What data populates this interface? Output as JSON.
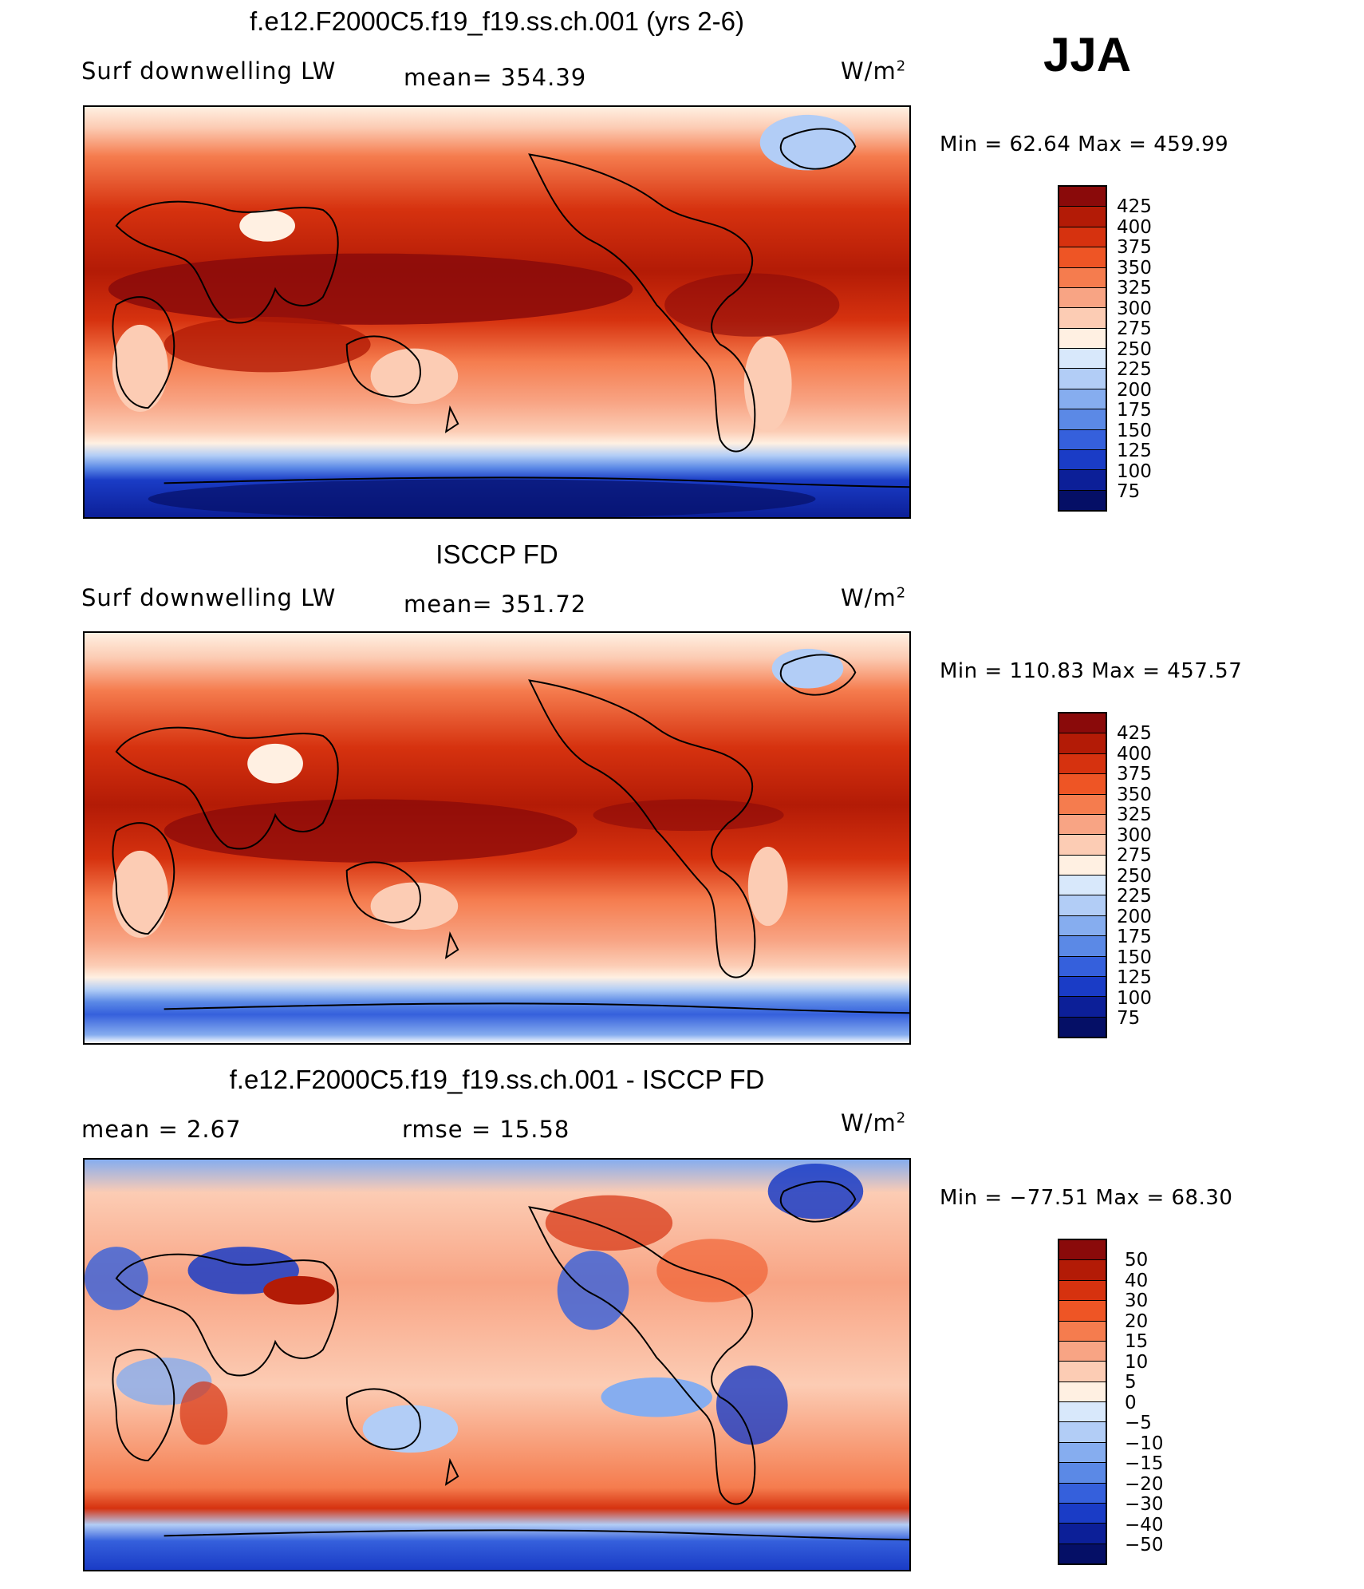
{
  "season": "JJA",
  "panels": [
    {
      "title": "f.e12.F2000C5.f19_f19.ss.ch.001 (yrs 2-6)",
      "variable": "Surf downwelling LW",
      "stat": "mean=  354.39",
      "units": "W/m",
      "units_sup": "2",
      "minmax": "Min =   62.64  Max  =  459.99",
      "scale": "abs",
      "colorbar_labels": [
        "425",
        "400",
        "375",
        "350",
        "325",
        "300",
        "275",
        "250",
        "225",
        "200",
        "175",
        "150",
        "125",
        "100",
        "75"
      ]
    },
    {
      "title": "ISCCP FD",
      "variable": "Surf downwelling LW",
      "stat": "mean=  351.72",
      "units": "W/m",
      "units_sup": "2",
      "minmax": "Min  =  110.83  Max  =  457.57",
      "scale": "abs",
      "colorbar_labels": [
        "425",
        "400",
        "375",
        "350",
        "325",
        "300",
        "275",
        "250",
        "225",
        "200",
        "175",
        "150",
        "125",
        "100",
        "75"
      ]
    },
    {
      "title": "f.e12.F2000C5.f19_f19.ss.ch.001 - ISCCP FD",
      "stat_left": "mean =     2.67",
      "stat": "rmse =    15.58",
      "units": "W/m",
      "units_sup": "2",
      "minmax": "Min  =  −77.51  Max  =    68.30",
      "scale": "diff",
      "colorbar_labels": [
        "50",
        "40",
        "30",
        "20",
        "15",
        "10",
        "5",
        "0",
        "−5",
        "−10",
        "−15",
        "−20",
        "−30",
        "−40",
        "−50"
      ]
    }
  ],
  "colorbar_colors": [
    "#8a0a0a",
    "#b31b06",
    "#d6320f",
    "#ee5525",
    "#f57c4e",
    "#f8a484",
    "#fcccb4",
    "#fff0e2",
    "#d8e8fb",
    "#b2cdf6",
    "#86adef",
    "#5b89e6",
    "#3560dc",
    "#1a3cc6",
    "#0c1f98",
    "#050f66"
  ]
}
